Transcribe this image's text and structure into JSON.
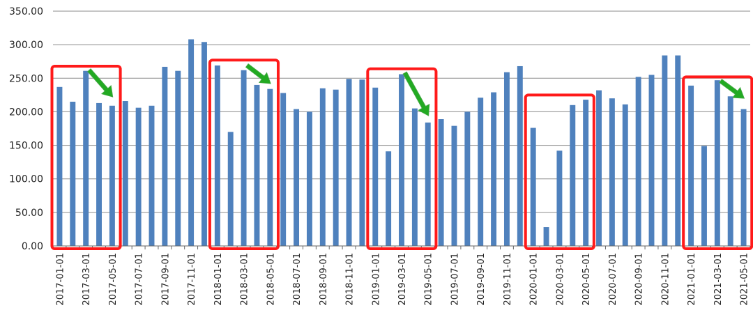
{
  "chart_data": {
    "type": "bar",
    "title": "",
    "xlabel": "",
    "ylabel": "",
    "ylim": [
      0,
      350
    ],
    "y_ticks": [
      "0.00",
      "50.00",
      "100.00",
      "150.00",
      "200.00",
      "250.00",
      "300.00",
      "350.00"
    ],
    "grid": "horizontal",
    "legend": "none",
    "bar_color": "#4f81bd",
    "categories": [
      "2017-01-01",
      "2017-02-01",
      "2017-03-01",
      "2017-04-01",
      "2017-05-01",
      "2017-06-01",
      "2017-07-01",
      "2017-08-01",
      "2017-09-01",
      "2017-10-01",
      "2017-11-01",
      "2017-12-01",
      "2018-01-01",
      "2018-02-01",
      "2018-03-01",
      "2018-04-01",
      "2018-05-01",
      "2018-06-01",
      "2018-07-01",
      "2018-08-01",
      "2018-09-01",
      "2018-10-01",
      "2018-11-01",
      "2018-12-01",
      "2019-01-01",
      "2019-02-01",
      "2019-03-01",
      "2019-04-01",
      "2019-05-01",
      "2019-06-01",
      "2019-07-01",
      "2019-08-01",
      "2019-09-01",
      "2019-10-01",
      "2019-11-01",
      "2019-12-01",
      "2020-01-01",
      "2020-02-01",
      "2020-03-01",
      "2020-04-01",
      "2020-05-01",
      "2020-06-01",
      "2020-07-01",
      "2020-08-01",
      "2020-09-01",
      "2020-10-01",
      "2020-11-01",
      "2020-12-01",
      "2021-01-01",
      "2021-02-01",
      "2021-03-01",
      "2021-04-01",
      "2021-05-01"
    ],
    "values": [
      237,
      215,
      261,
      213,
      209,
      216,
      206,
      209,
      267,
      261,
      308,
      304,
      269,
      170,
      262,
      240,
      234,
      228,
      204,
      200,
      235,
      233,
      249,
      248,
      236,
      141,
      256,
      205,
      184,
      189,
      179,
      200,
      221,
      229,
      259,
      268,
      176,
      28,
      142,
      210,
      218,
      232,
      220,
      211,
      252,
      255,
      284,
      284,
      239,
      149,
      247,
      223,
      204
    ],
    "annotations": {
      "box_color": "#ff1a1a",
      "arrow_color": "#22aa22",
      "boxes": [
        {
          "from": "2017-01-01",
          "to": "2017-05-01",
          "top": 268
        },
        {
          "from": "2018-01-01",
          "to": "2018-05-01",
          "top": 277
        },
        {
          "from": "2019-01-01",
          "to": "2019-05-01",
          "top": 264
        },
        {
          "from": "2020-01-01",
          "to": "2020-05-01",
          "top": 225
        },
        {
          "from": "2021-01-01",
          "to": "2021-05-01",
          "top": 252
        }
      ],
      "arrows": [
        {
          "from": "2017-03-01",
          "to": "2017-05-01",
          "y_start": 262,
          "y_end": 222
        },
        {
          "from": "2018-03-01",
          "to": "2018-05-01",
          "y_start": 269,
          "y_end": 242
        },
        {
          "from": "2019-03-01",
          "to": "2019-05-01",
          "y_start": 258,
          "y_end": 194
        },
        {
          "from": "2021-03-01",
          "to": "2021-05-01",
          "y_start": 246,
          "y_end": 220
        }
      ]
    }
  }
}
